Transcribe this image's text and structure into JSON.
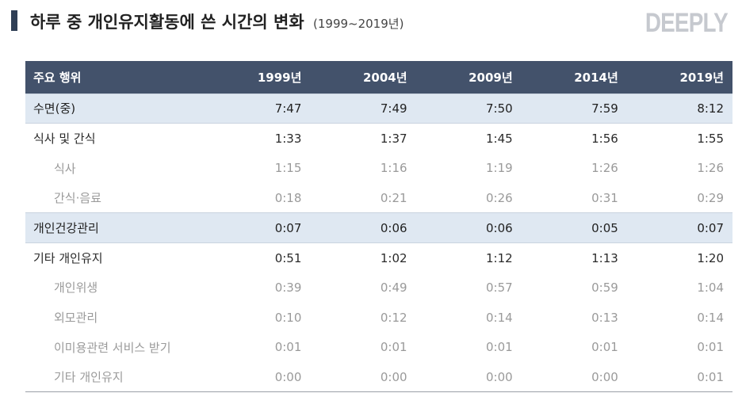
{
  "header": {
    "title": "하루 중 개인유지활동에 쓴 시간의 변화",
    "subtitle": "(1999~2019년)",
    "brand": "DEEPLY"
  },
  "table": {
    "columns": [
      "주요 행위",
      "1999년",
      "2004년",
      "2009년",
      "2014년",
      "2019년"
    ],
    "rows": [
      {
        "label": "수면(중)",
        "values": [
          "7:47",
          "7:49",
          "7:50",
          "7:59",
          "8:12"
        ],
        "style": "hl"
      },
      {
        "label": "식사 및 간식",
        "values": [
          "1:33",
          "1:37",
          "1:45",
          "1:56",
          "1:55"
        ],
        "style": "main"
      },
      {
        "label": "식사",
        "values": [
          "1:15",
          "1:16",
          "1:19",
          "1:26",
          "1:26"
        ],
        "style": "sub"
      },
      {
        "label": "간식·음료",
        "values": [
          "0:18",
          "0:21",
          "0:26",
          "0:31",
          "0:29"
        ],
        "style": "sub"
      },
      {
        "label": "개인건강관리",
        "values": [
          "0:07",
          "0:06",
          "0:06",
          "0:05",
          "0:07"
        ],
        "style": "hl"
      },
      {
        "label": "기타 개인유지",
        "values": [
          "0:51",
          "1:02",
          "1:12",
          "1:13",
          "1:20"
        ],
        "style": "main"
      },
      {
        "label": "개인위생",
        "values": [
          "0:39",
          "0:49",
          "0:57",
          "0:59",
          "1:04"
        ],
        "style": "sub"
      },
      {
        "label": "외모관리",
        "values": [
          "0:10",
          "0:12",
          "0:14",
          "0:13",
          "0:14"
        ],
        "style": "sub"
      },
      {
        "label": "이미용관련 서비스 받기",
        "values": [
          "0:01",
          "0:01",
          "0:01",
          "0:01",
          "0:01"
        ],
        "style": "sub"
      },
      {
        "label": "기타 개인유지",
        "values": [
          "0:00",
          "0:00",
          "0:00",
          "0:00",
          "0:01"
        ],
        "style": "sub"
      }
    ]
  }
}
